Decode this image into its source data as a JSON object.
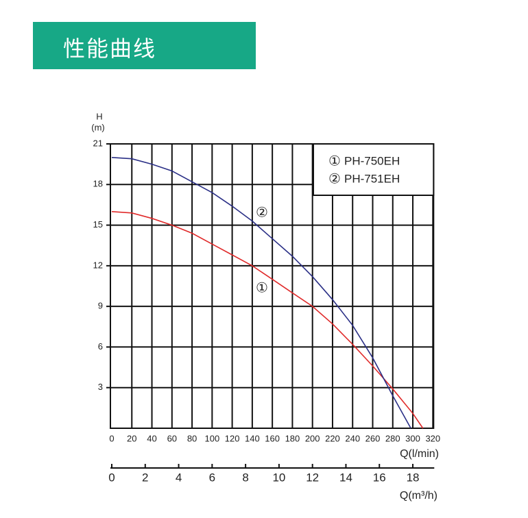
{
  "header": {
    "title": "性能曲线"
  },
  "chart_data": {
    "type": "line",
    "y_label_top": "H",
    "y_label": "(m)",
    "x_label": "Q(l/min)",
    "x2_label": "Q(m³/h)",
    "xlim": [
      0,
      320
    ],
    "xticks": [
      0,
      20,
      40,
      60,
      80,
      100,
      120,
      140,
      160,
      180,
      200,
      220,
      240,
      260,
      280,
      300,
      320
    ],
    "ylim": [
      0,
      21
    ],
    "yticks": [
      3,
      6,
      9,
      12,
      15,
      18,
      21
    ],
    "x2lim": [
      0,
      19.2
    ],
    "x2ticks": [
      0,
      2,
      4,
      6,
      8,
      10,
      12,
      14,
      16,
      18
    ],
    "grid": true,
    "series": [
      {
        "name": "PH-750EH",
        "marker": "①",
        "color": "#e02a2a",
        "x": [
          0,
          20,
          40,
          60,
          80,
          100,
          120,
          140,
          160,
          180,
          200,
          220,
          240,
          260,
          280,
          300,
          310
        ],
        "values": [
          16,
          15.9,
          15.5,
          15,
          14.4,
          13.6,
          12.8,
          12,
          11,
          10,
          9,
          7.7,
          6.2,
          4.6,
          2.9,
          1.1,
          0
        ]
      },
      {
        "name": "PH-751EH",
        "marker": "②",
        "color": "#2a2f86",
        "x": [
          0,
          20,
          40,
          60,
          80,
          100,
          120,
          140,
          160,
          180,
          200,
          220,
          240,
          260,
          280,
          298
        ],
        "values": [
          20,
          19.9,
          19.5,
          19,
          18.2,
          17.4,
          16.4,
          15.3,
          14,
          12.7,
          11.2,
          9.5,
          7.6,
          5.2,
          2.4,
          0
        ]
      }
    ]
  }
}
